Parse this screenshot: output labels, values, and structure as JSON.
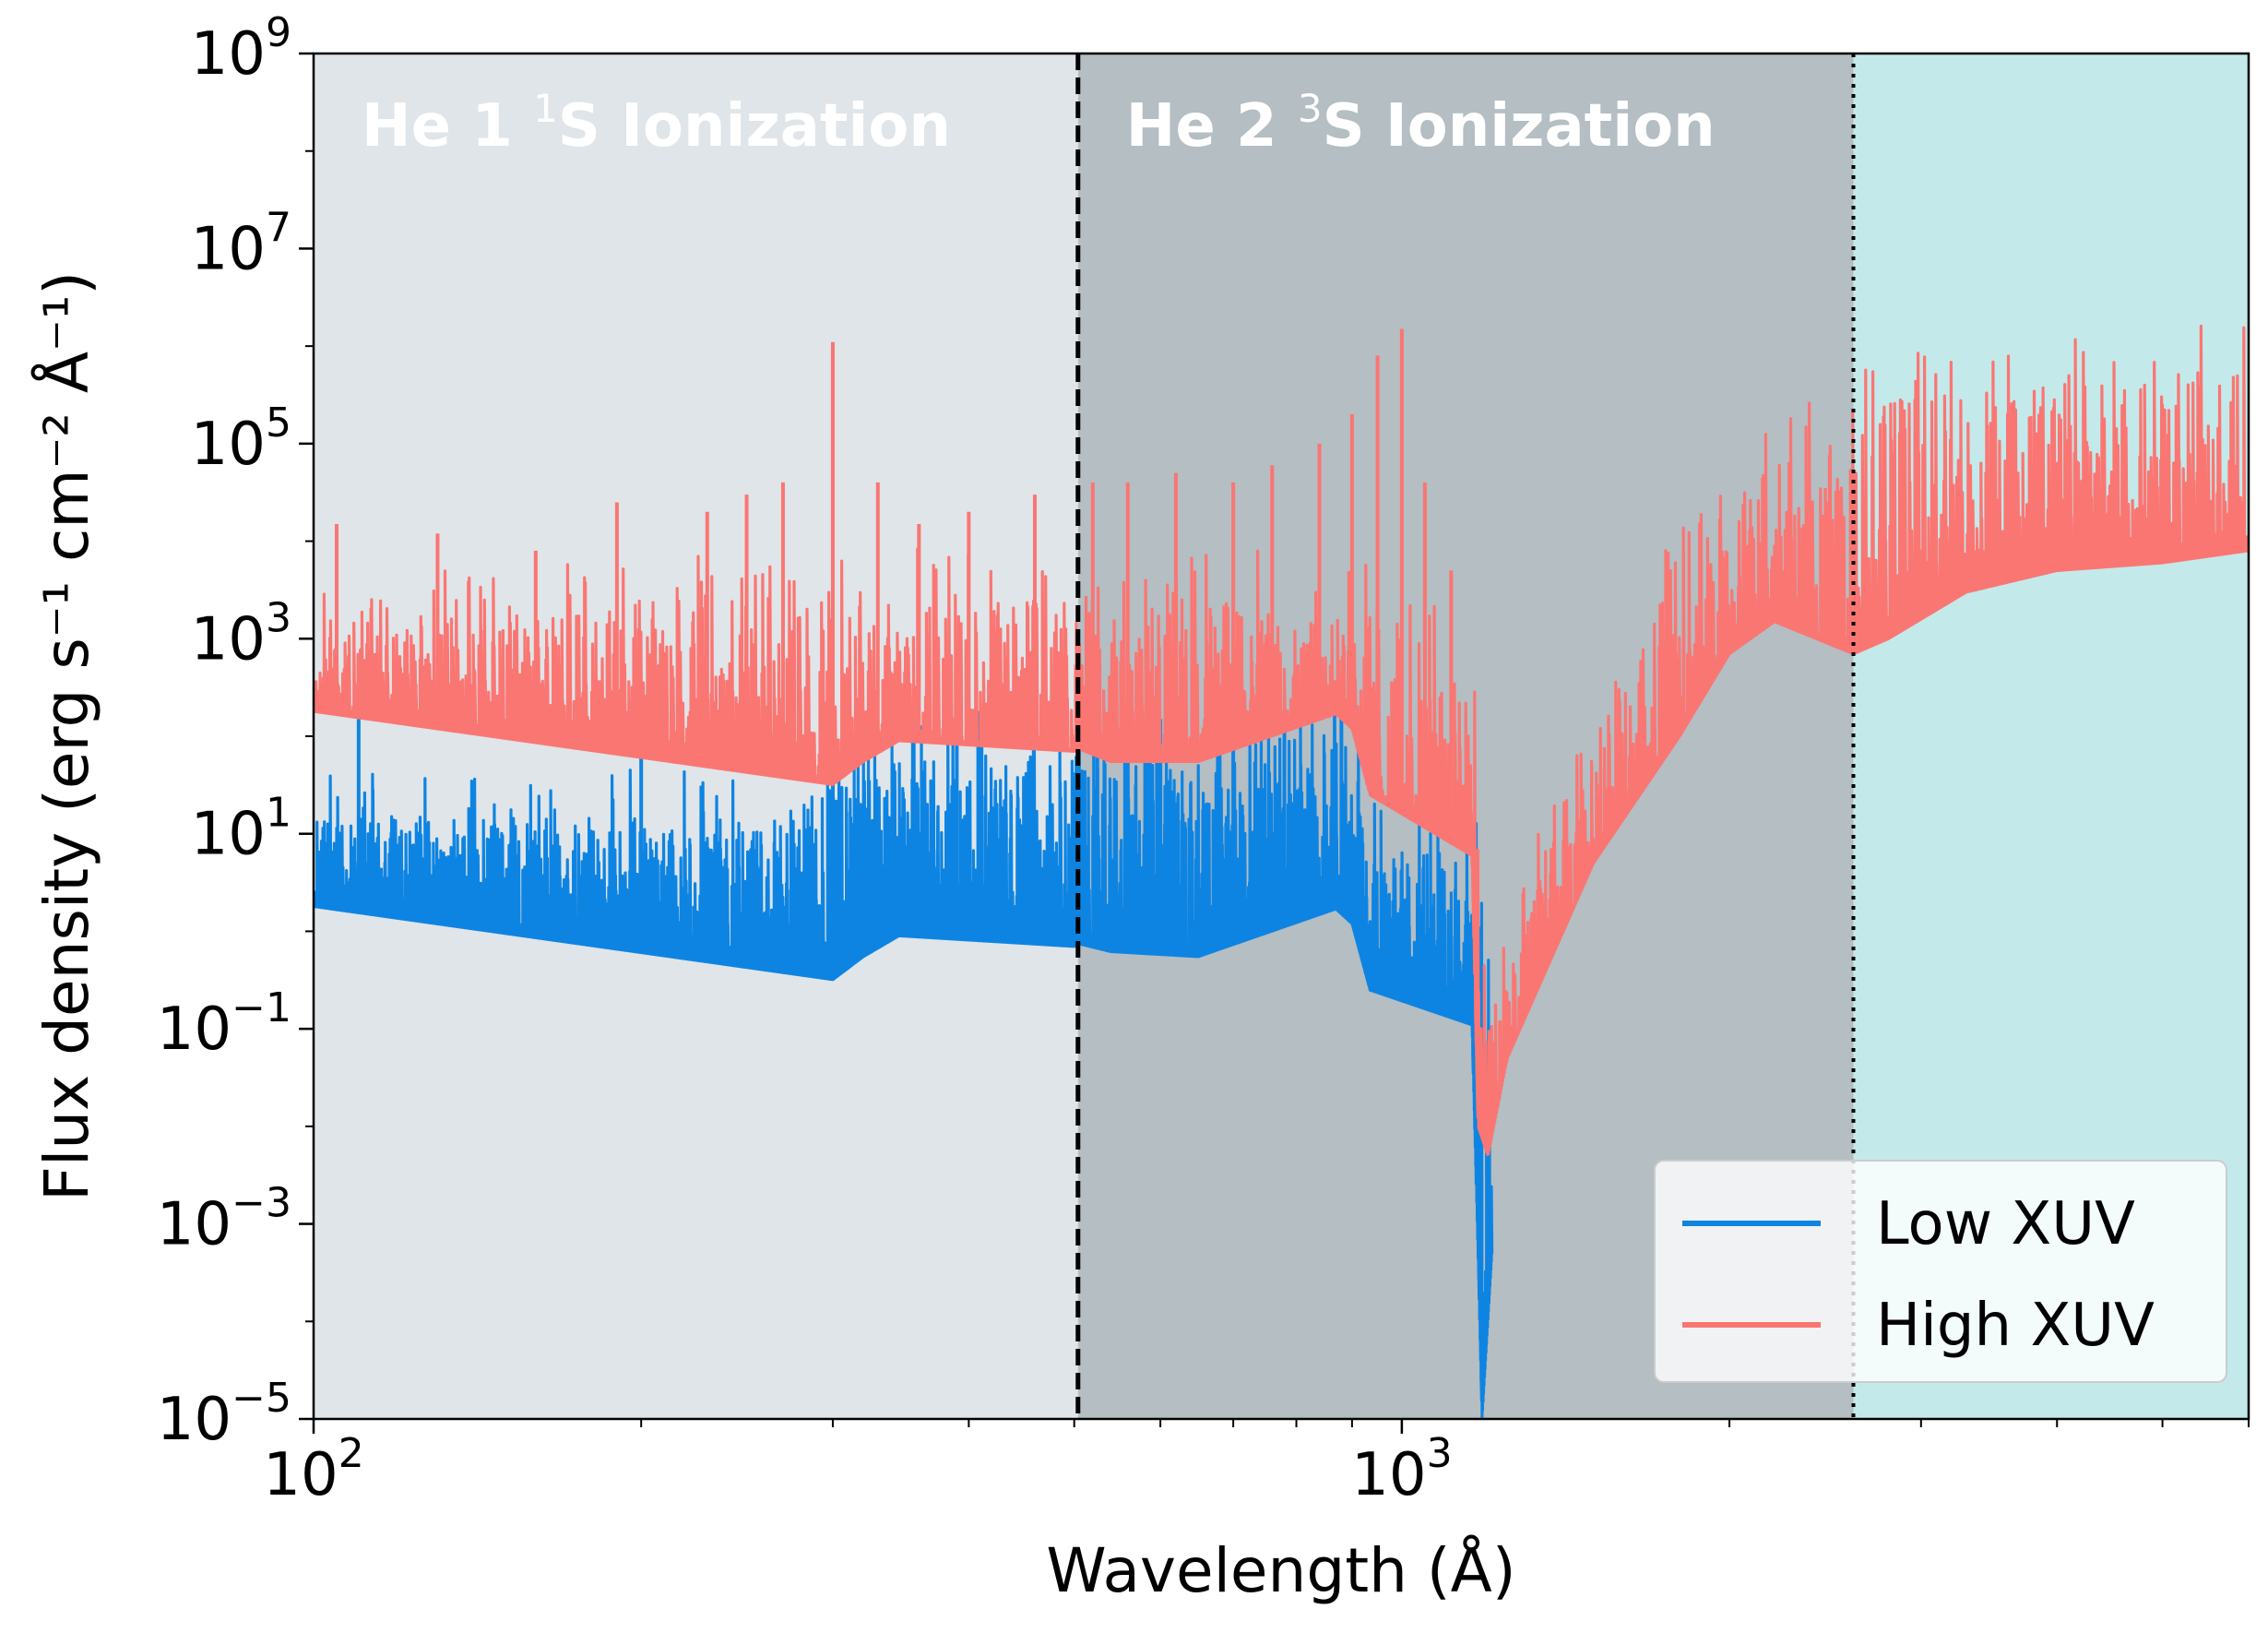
{
  "chart_data": {
    "type": "line",
    "xlabel": "Wavelength (Å)",
    "ylabel": "Flux density (erg s⁻¹ cm⁻² Å⁻¹)",
    "xscale": "log",
    "yscale": "log",
    "xlim": [
      100,
      6000
    ],
    "ylim": [
      1e-05,
      1000000000.0
    ],
    "x_ticks": [
      {
        "value": 100,
        "base": "10",
        "exp": "2"
      },
      {
        "value": 1000,
        "base": "10",
        "exp": "3"
      }
    ],
    "y_ticks": [
      {
        "value": 1000000000.0,
        "base": "10",
        "exp": "9"
      },
      {
        "value": 10000000.0,
        "base": "10",
        "exp": "7"
      },
      {
        "value": 100000.0,
        "base": "10",
        "exp": "5"
      },
      {
        "value": 1000.0,
        "base": "10",
        "exp": "3"
      },
      {
        "value": 10.0,
        "base": "10",
        "exp": "1"
      },
      {
        "value": 0.1,
        "base": "10",
        "exp": "−1"
      },
      {
        "value": 0.001,
        "base": "10",
        "exp": "−3"
      },
      {
        "value": 1e-05,
        "base": "10",
        "exp": "−5"
      }
    ],
    "regions": [
      {
        "label_main": "He 1 ",
        "label_sup": "1",
        "label_end": "S Ionization",
        "x0": 100,
        "x1": 504,
        "color": "#dfe5e8"
      },
      {
        "label_main": "He 2 ",
        "label_sup": "3",
        "label_end": "S Ionization",
        "x0": 504,
        "x1": 2600,
        "color": "#b4bec3"
      },
      {
        "x0": 2600,
        "x1": 6000,
        "color": "#c4e9ea"
      }
    ],
    "vlines": [
      {
        "x": 504,
        "style": "dashed"
      },
      {
        "x": 2600,
        "style": "dotted"
      }
    ],
    "legend_position": "lower-right",
    "series": [
      {
        "name": "Low XUV",
        "color": "#0e84e2",
        "baseline": [
          [
            100,
            1.8
          ],
          [
            300,
            0.32
          ],
          [
            320,
            0.55
          ],
          [
            345,
            0.9
          ],
          [
            500,
            0.7
          ],
          [
            504,
            0.75
          ],
          [
            540,
            0.62
          ],
          [
            650,
            0.55
          ],
          [
            870,
            1.7
          ],
          [
            900,
            1.2
          ],
          [
            935,
            0.25
          ],
          [
            1160,
            0.11
          ],
          [
            1175,
            0.0005
          ],
          [
            1185,
            1e-05
          ],
          [
            1210,
            0.0005
          ]
        ],
        "top": [
          [
            100,
            15
          ],
          [
            250,
            15
          ],
          [
            300,
            30
          ],
          [
            330,
            60
          ],
          [
            500,
            70
          ],
          [
            504,
            60
          ],
          [
            700,
            60
          ],
          [
            860,
            120
          ],
          [
            900,
            80
          ],
          [
            935,
            8
          ],
          [
            1160,
            5
          ]
        ],
        "spikes": [
          [
            110,
            150
          ],
          [
            200,
            150
          ],
          [
            300,
            180
          ],
          [
            390,
            150
          ],
          [
            505,
            200
          ],
          [
            525,
            150
          ],
          [
            600,
            150
          ],
          [
            700,
            140
          ],
          [
            780,
            120
          ],
          [
            880,
            200
          ]
        ]
      },
      {
        "name": "High XUV",
        "color": "#fa7673",
        "baseline": [
          [
            100,
            180
          ],
          [
            300,
            32
          ],
          [
            320,
            55
          ],
          [
            345,
            90
          ],
          [
            500,
            70
          ],
          [
            504,
            75
          ],
          [
            540,
            55
          ],
          [
            650,
            55
          ],
          [
            870,
            170
          ],
          [
            900,
            120
          ],
          [
            935,
            25
          ],
          [
            1160,
            6
          ],
          [
            1175,
            0.01
          ],
          [
            1200,
            0.005
          ],
          [
            1250,
            0.05
          ],
          [
            1500,
            5
          ],
          [
            1800,
            100
          ],
          [
            2000,
            700
          ],
          [
            2200,
            1500
          ],
          [
            2600,
            700
          ],
          [
            2800,
            1000
          ],
          [
            3300,
            3000
          ],
          [
            4000,
            5000
          ],
          [
            5000,
            6000
          ],
          [
            6000,
            8000
          ]
        ],
        "top": [
          [
            100,
            1500
          ],
          [
            300,
            3000
          ],
          [
            500,
            3000
          ],
          [
            700,
            3000
          ],
          [
            900,
            2000
          ],
          [
            1000,
            2000
          ],
          [
            1160,
            300
          ],
          [
            1200,
            0.3
          ],
          [
            1400,
            30
          ],
          [
            1700,
            2000
          ],
          [
            2000,
            20000
          ],
          [
            2200,
            60000
          ],
          [
            2600,
            150000
          ],
          [
            2700,
            250000
          ],
          [
            3000,
            320000
          ],
          [
            4000,
            400000
          ],
          [
            5000,
            500000
          ],
          [
            6000,
            600000
          ]
        ],
        "spikes": [
          [
            105,
            15000
          ],
          [
            130,
            12000
          ],
          [
            160,
            8000
          ],
          [
            190,
            25000
          ],
          [
            230,
            20000
          ],
          [
            250,
            30000
          ],
          [
            270,
            40000
          ],
          [
            300,
            1100000
          ],
          [
            330,
            40000
          ],
          [
            360,
            15000
          ],
          [
            400,
            20000
          ],
          [
            460,
            30000
          ],
          [
            520,
            40000
          ],
          [
            560,
            40000
          ],
          [
            620,
            50000
          ],
          [
            700,
            40000
          ],
          [
            760,
            60000
          ],
          [
            840,
            100000
          ],
          [
            900,
            200000
          ],
          [
            950,
            800000
          ],
          [
            1000,
            1500000
          ],
          [
            1050,
            40000
          ],
          [
            1110,
            5000
          ]
        ]
      }
    ]
  }
}
